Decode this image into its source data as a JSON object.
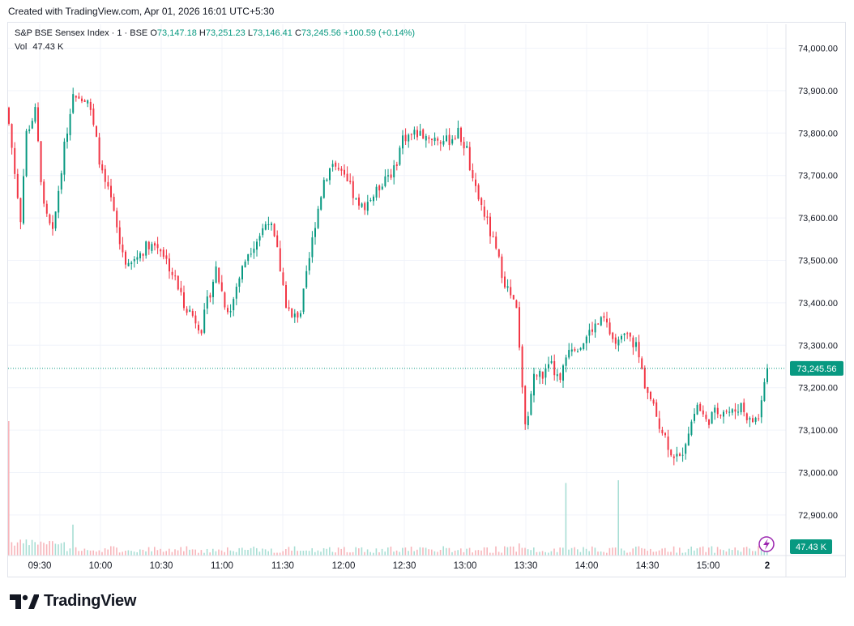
{
  "header": {
    "created_with": "Created with TradingView.com, Apr 01, 2026 16:01 UTC+5:30"
  },
  "legend": {
    "symbol": "S&P BSE Sensex Index · 1 · BSE",
    "open_label": "O",
    "open": "73,147.18",
    "high_label": "H",
    "high": "73,251.23",
    "low_label": "L",
    "low": "73,146.41",
    "close_label": "C",
    "close": "73,245.56",
    "change": "+100.59 (+0.14%)",
    "vol_label": "Vol",
    "vol": "47.43 K"
  },
  "footer": {
    "brand": "TradingView"
  },
  "colors": {
    "up": "#089981",
    "down": "#f23645",
    "grid": "#f0f3fa",
    "text": "#131722"
  },
  "chart_data": {
    "type": "candlestick",
    "title": "S&P BSE Sensex Index",
    "interval": "1 minute",
    "x": [
      "09:30",
      "10:00",
      "10:30",
      "11:00",
      "11:30",
      "12:00",
      "12:30",
      "13:00",
      "13:30",
      "14:00",
      "14:30",
      "15:00",
      "2"
    ],
    "y_ticks": [
      "74,000.00",
      "73,900.00",
      "73,800.00",
      "73,700.00",
      "73,600.00",
      "73,500.00",
      "73,400.00",
      "73,300.00",
      "73,200.00",
      "73,100.00",
      "73,000.00",
      "72,900.00"
    ],
    "ylim": [
      72900,
      74000
    ],
    "last_price": 73245.56,
    "last_price_label": "73,245.56",
    "volume_label": "47.43 K",
    "close_path": [
      [
        0,
        73820
      ],
      [
        4,
        73600
      ],
      [
        6,
        73800
      ],
      [
        9,
        73850
      ],
      [
        12,
        73620
      ],
      [
        15,
        73560
      ],
      [
        18,
        73720
      ],
      [
        22,
        73900
      ],
      [
        27,
        73880
      ],
      [
        30,
        73780
      ],
      [
        32,
        73700
      ],
      [
        35,
        73640
      ],
      [
        38,
        73540
      ],
      [
        41,
        73480
      ],
      [
        44,
        73510
      ],
      [
        48,
        73540
      ],
      [
        52,
        73530
      ],
      [
        56,
        73470
      ],
      [
        60,
        73400
      ],
      [
        64,
        73360
      ],
      [
        66,
        73340
      ],
      [
        68,
        73400
      ],
      [
        71,
        73480
      ],
      [
        74,
        73400
      ],
      [
        76,
        73380
      ],
      [
        78,
        73440
      ],
      [
        82,
        73520
      ],
      [
        86,
        73560
      ],
      [
        89,
        73600
      ],
      [
        92,
        73520
      ],
      [
        95,
        73400
      ],
      [
        97,
        73360
      ],
      [
        100,
        73380
      ],
      [
        102,
        73460
      ],
      [
        105,
        73590
      ],
      [
        108,
        73690
      ],
      [
        111,
        73730
      ],
      [
        114,
        73700
      ],
      [
        117,
        73670
      ],
      [
        120,
        73620
      ],
      [
        123,
        73640
      ],
      [
        126,
        73660
      ],
      [
        129,
        73700
      ],
      [
        132,
        73710
      ],
      [
        135,
        73790
      ],
      [
        140,
        73800
      ],
      [
        145,
        73790
      ],
      [
        150,
        73780
      ],
      [
        154,
        73800
      ],
      [
        157,
        73760
      ],
      [
        159,
        73680
      ],
      [
        163,
        73610
      ],
      [
        167,
        73520
      ],
      [
        170,
        73450
      ],
      [
        174,
        73380
      ],
      [
        177,
        73100
      ],
      [
        180,
        73230
      ],
      [
        183,
        73230
      ],
      [
        186,
        73250
      ],
      [
        189,
        73210
      ],
      [
        192,
        73300
      ],
      [
        196,
        73300
      ],
      [
        200,
        73340
      ],
      [
        204,
        73360
      ],
      [
        208,
        73300
      ],
      [
        212,
        73320
      ],
      [
        215,
        73300
      ],
      [
        218,
        73210
      ],
      [
        221,
        73150
      ],
      [
        224,
        73100
      ],
      [
        227,
        73050
      ],
      [
        230,
        73030
      ],
      [
        233,
        73100
      ],
      [
        236,
        73160
      ],
      [
        239,
        73120
      ],
      [
        242,
        73140
      ],
      [
        245,
        73150
      ],
      [
        248,
        73140
      ],
      [
        251,
        73160
      ],
      [
        254,
        73120
      ],
      [
        257,
        73130
      ],
      [
        260,
        73250
      ]
    ],
    "volume_spikes": [
      [
        0,
        1.0
      ],
      [
        22,
        0.23
      ],
      [
        175,
        0.09
      ],
      [
        191,
        0.54
      ],
      [
        209,
        0.56
      ],
      [
        258,
        0.13
      ]
    ]
  }
}
